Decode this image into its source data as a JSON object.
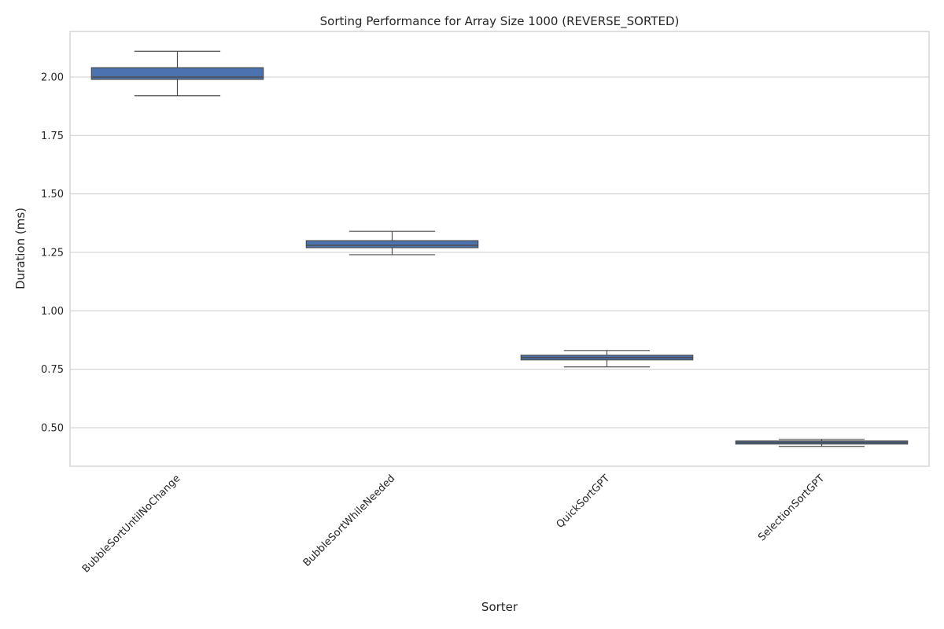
{
  "chart_data": {
    "type": "box",
    "title": "Sorting Performance for Array Size 1000 (REVERSE_SORTED)",
    "xlabel": "Sorter",
    "ylabel": "Duration (ms)",
    "ylim": [
      0.335,
      2.195
    ],
    "yticks": [
      0.5,
      0.75,
      1.0,
      1.25,
      1.5,
      1.75,
      2.0
    ],
    "ytick_labels": [
      "0.50",
      "0.75",
      "1.00",
      "1.25",
      "1.50",
      "1.75",
      "2.00"
    ],
    "grid": true,
    "box_color": "#4c72b0",
    "categories": [
      "BubbleSortUntilNoChange",
      "BubbleSortWhileNeeded",
      "QuickSortGPT",
      "SelectionSortGPT"
    ],
    "boxes": [
      {
        "whisker_low": 1.92,
        "q1": 1.99,
        "median": 2.0,
        "q3": 2.04,
        "whisker_high": 2.11
      },
      {
        "whisker_low": 1.24,
        "q1": 1.27,
        "median": 1.28,
        "q3": 1.3,
        "whisker_high": 1.34
      },
      {
        "whisker_low": 0.76,
        "q1": 0.79,
        "median": 0.8,
        "q3": 0.81,
        "whisker_high": 0.83
      },
      {
        "whisker_low": 0.42,
        "q1": 0.43,
        "median": 0.437,
        "q3": 0.443,
        "whisker_high": 0.45
      }
    ]
  }
}
